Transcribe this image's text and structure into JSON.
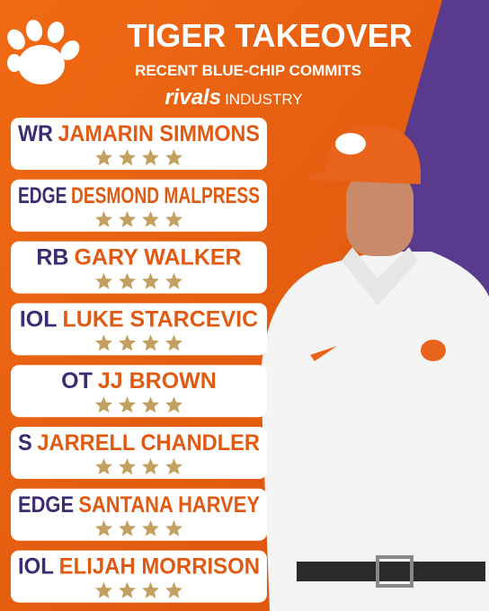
{
  "header": {
    "title": "TIGER TAKEOVER",
    "subtitle": "RECENT BLUE-CHIP COMMITS",
    "brand": "rivals",
    "brand_suffix": "INDUSTRY"
  },
  "players": [
    {
      "position": "WR",
      "name": "JAMARIN SIMMONS",
      "stars": 4
    },
    {
      "position": "EDGE",
      "name": "DESMOND MALPRESS",
      "stars": 4
    },
    {
      "position": "RB",
      "name": "GARY WALKER",
      "stars": 4
    },
    {
      "position": "IOL",
      "name": "LUKE STARCEVIC",
      "stars": 4
    },
    {
      "position": "OT",
      "name": "JJ BROWN",
      "stars": 4
    },
    {
      "position": "S",
      "name": "JARRELL CHANDLER",
      "stars": 4
    },
    {
      "position": "EDGE",
      "name": "SANTANA HARVEY",
      "stars": 4
    },
    {
      "position": "IOL",
      "name": "ELIJAH MORRISON",
      "stars": 4
    }
  ]
}
